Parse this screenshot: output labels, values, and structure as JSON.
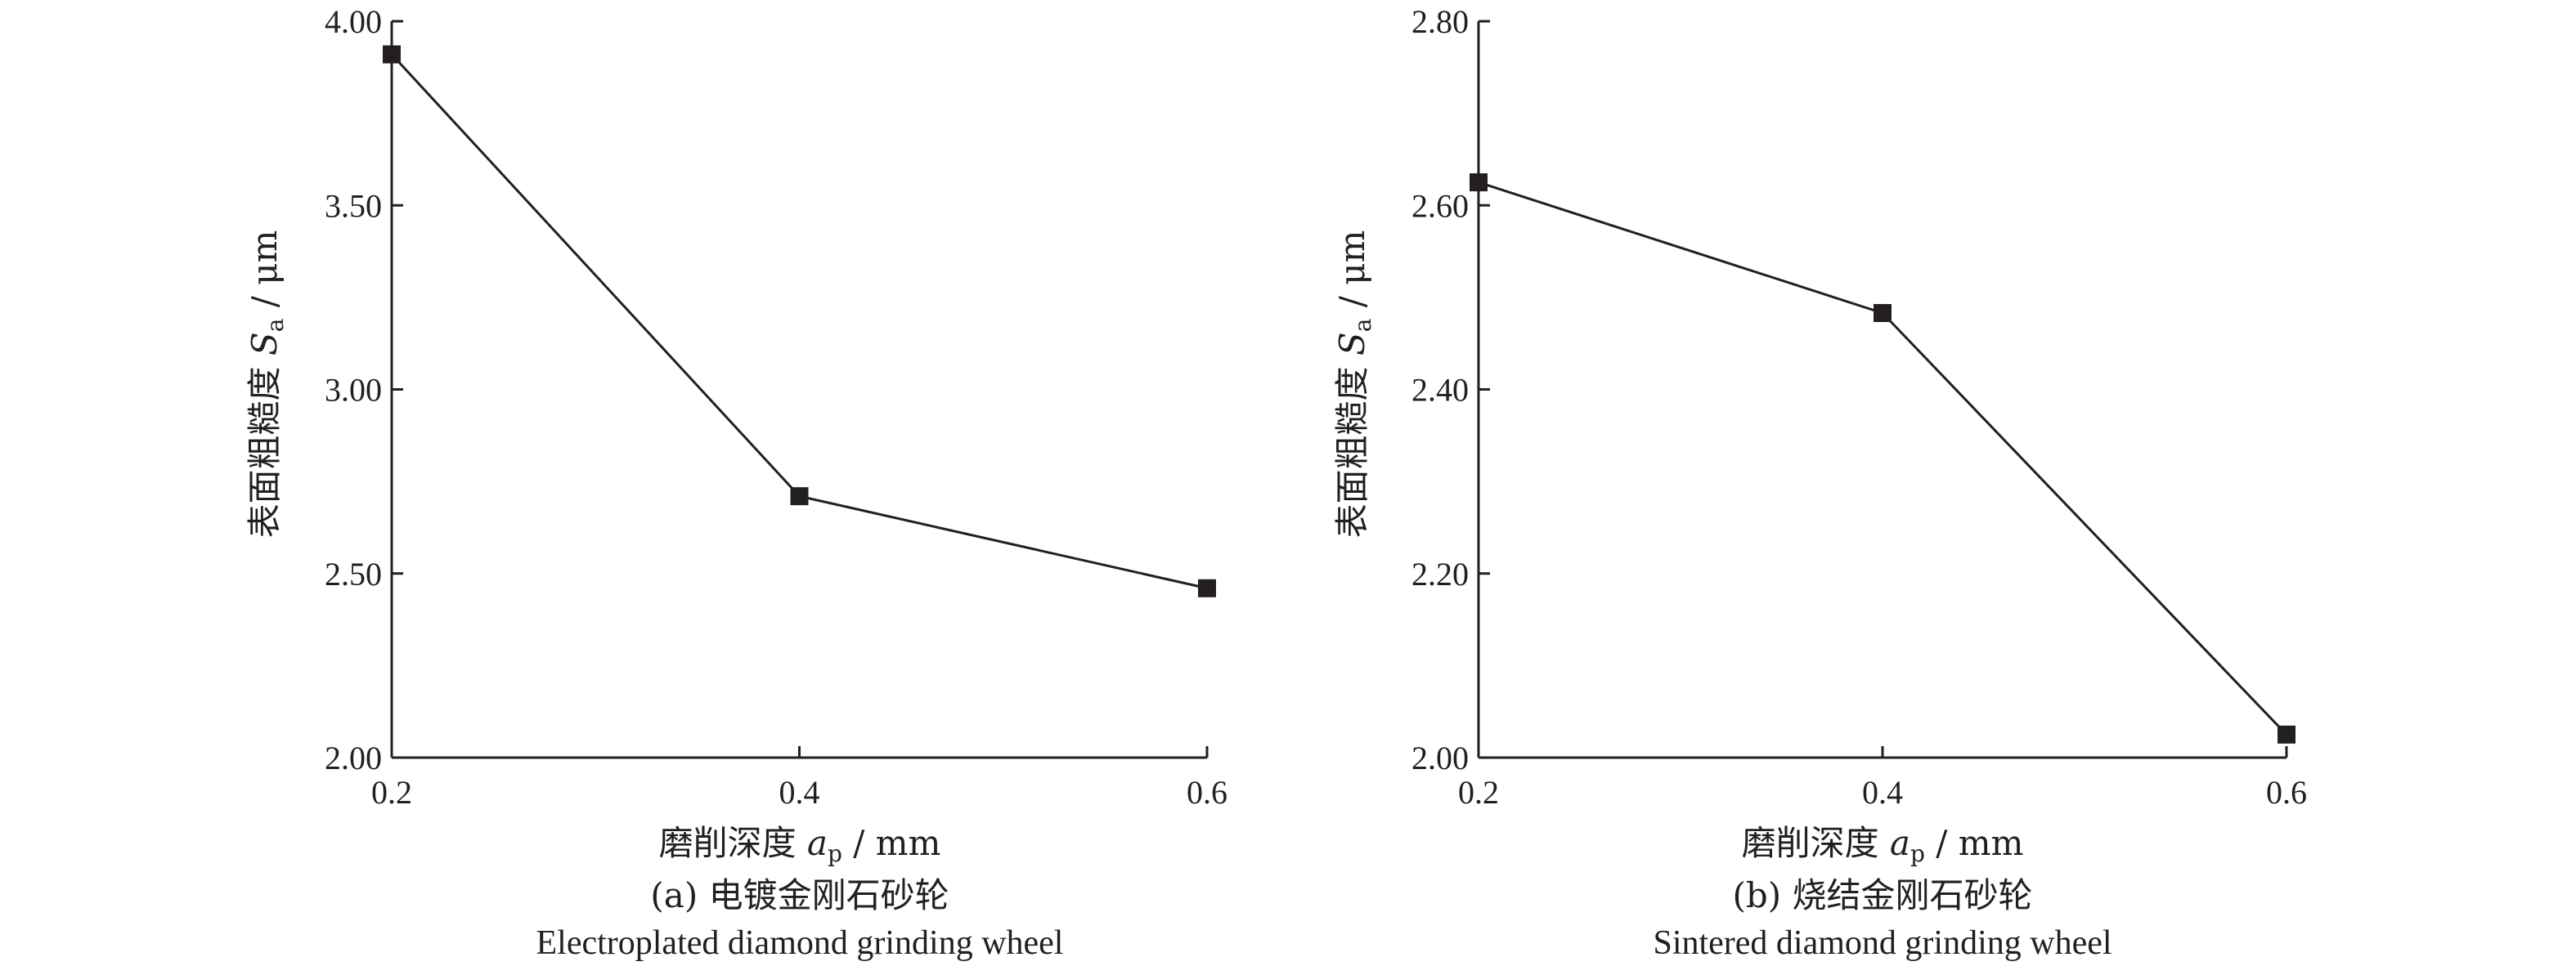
{
  "chart_data": [
    {
      "type": "line",
      "x": [
        0.2,
        0.4,
        0.6
      ],
      "y": [
        3.91,
        2.71,
        2.46
      ],
      "xticks": [
        "0.2",
        "0.4",
        "0.6"
      ],
      "yticks": [
        "2.00",
        "2.50",
        "3.00",
        "3.50",
        "4.00"
      ],
      "xlim": [
        0.2,
        0.6
      ],
      "ylim": [
        2.0,
        4.0
      ],
      "ylabel": {
        "prefix": "表面粗糙度 ",
        "sym": "S",
        "sub": "a",
        "suffix": " / μm"
      },
      "xlabel": {
        "prefix": "磨削深度 ",
        "sym": "a",
        "sub": "p",
        "suffix": " / mm"
      },
      "caption_zh": "(a) 电镀金刚石砂轮",
      "caption_en": "Electroplated diamond grinding wheel",
      "marker": "square",
      "grid": false
    },
    {
      "type": "line",
      "x": [
        0.2,
        0.4,
        0.6
      ],
      "y": [
        2.625,
        2.483,
        2.025
      ],
      "xticks": [
        "0.2",
        "0.4",
        "0.6"
      ],
      "yticks": [
        "2.00",
        "2.20",
        "2.40",
        "2.60",
        "2.80"
      ],
      "xlim": [
        0.2,
        0.6
      ],
      "ylim": [
        2.0,
        2.8
      ],
      "ylabel": {
        "prefix": "表面粗糙度 ",
        "sym": "S",
        "sub": "a",
        "suffix": " / μm"
      },
      "xlabel": {
        "prefix": "磨削深度 ",
        "sym": "a",
        "sub": "p",
        "suffix": " / mm"
      },
      "caption_zh": "(b) 烧结金刚石砂轮",
      "caption_en": "Sintered diamond grinding wheel",
      "marker": "square",
      "grid": false
    }
  ]
}
